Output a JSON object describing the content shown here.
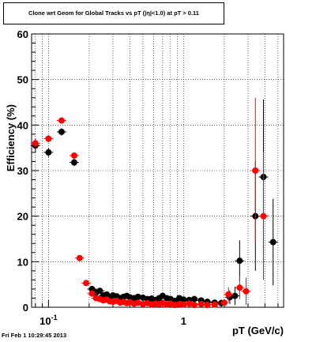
{
  "title": "Clone wrt Geom for Global Tracks vs pT (|η|<1.0) at pT > 0.11",
  "footer": "Fri Feb  1 10:29:45 2013",
  "chart_data": {
    "type": "scatter",
    "title": "Clone wrt Geom for Global Tracks vs pT (|η|<1.0) at pT > 0.11",
    "xlabel": "pT (GeV/c)",
    "ylabel": "Efficiency (%)",
    "xscale": "log",
    "xlim": [
      0.075,
      5.5
    ],
    "ylim": [
      0,
      60
    ],
    "yticks": [
      0,
      10,
      20,
      30,
      40,
      50,
      60
    ],
    "xtick_labels": [
      {
        "value": 0.1,
        "label": "10",
        "sup": "-1"
      },
      {
        "value": 1,
        "label": "1",
        "sup": ""
      }
    ],
    "grid": true,
    "series": [
      {
        "color": "#000000",
        "points": [
          {
            "x": 0.08,
            "y": 35.5,
            "ey": 1.5
          },
          {
            "x": 0.1,
            "y": 34.0,
            "ey": 1.0
          },
          {
            "x": 0.125,
            "y": 38.5,
            "ey": 0.8
          },
          {
            "x": 0.155,
            "y": 31.8,
            "ey": 0.8
          },
          {
            "x": 0.21,
            "y": 4.0,
            "ey": 0.5
          },
          {
            "x": 0.225,
            "y": 3.2,
            "ey": 0.5
          },
          {
            "x": 0.24,
            "y": 3.6,
            "ey": 0.5
          },
          {
            "x": 0.255,
            "y": 2.6,
            "ey": 0.4
          },
          {
            "x": 0.27,
            "y": 2.8,
            "ey": 0.4
          },
          {
            "x": 0.285,
            "y": 2.2,
            "ey": 0.4
          },
          {
            "x": 0.3,
            "y": 2.6,
            "ey": 0.4
          },
          {
            "x": 0.32,
            "y": 2.4,
            "ey": 0.4
          },
          {
            "x": 0.34,
            "y": 2.0,
            "ey": 0.4
          },
          {
            "x": 0.36,
            "y": 2.3,
            "ey": 0.4
          },
          {
            "x": 0.38,
            "y": 2.5,
            "ey": 0.4
          },
          {
            "x": 0.4,
            "y": 2.2,
            "ey": 0.4
          },
          {
            "x": 0.43,
            "y": 2.0,
            "ey": 0.4
          },
          {
            "x": 0.46,
            "y": 2.3,
            "ey": 0.4
          },
          {
            "x": 0.5,
            "y": 2.1,
            "ey": 0.4
          },
          {
            "x": 0.54,
            "y": 1.8,
            "ey": 0.4
          },
          {
            "x": 0.58,
            "y": 1.9,
            "ey": 0.4
          },
          {
            "x": 0.62,
            "y": 1.6,
            "ey": 0.4
          },
          {
            "x": 0.66,
            "y": 2.0,
            "ey": 0.4
          },
          {
            "x": 0.7,
            "y": 2.5,
            "ey": 0.4
          },
          {
            "x": 0.75,
            "y": 2.0,
            "ey": 0.4
          },
          {
            "x": 0.8,
            "y": 1.8,
            "ey": 0.4
          },
          {
            "x": 0.86,
            "y": 1.4,
            "ey": 0.4
          },
          {
            "x": 0.93,
            "y": 2.0,
            "ey": 0.4
          },
          {
            "x": 1.0,
            "y": 1.7,
            "ey": 0.4
          },
          {
            "x": 1.1,
            "y": 1.6,
            "ey": 0.5
          },
          {
            "x": 1.2,
            "y": 1.8,
            "ey": 0.5
          },
          {
            "x": 1.35,
            "y": 1.5,
            "ey": 0.6
          },
          {
            "x": 1.5,
            "y": 1.2,
            "ey": 0.6
          },
          {
            "x": 1.7,
            "y": 1.0,
            "ey": 0.7
          },
          {
            "x": 1.9,
            "y": 0.9,
            "ey": 0.8
          },
          {
            "x": 2.2,
            "y": 2.2,
            "ey": 1.5
          },
          {
            "x": 2.4,
            "y": 2.5,
            "ey": 2.0
          },
          {
            "x": 2.6,
            "y": 10.2,
            "ey": 4.5
          },
          {
            "x": 3.4,
            "y": 20.0,
            "ey": 12.0
          },
          {
            "x": 3.9,
            "y": 28.6,
            "ey": 17.0
          },
          {
            "x": 4.6,
            "y": 14.3,
            "ey": 9.5
          }
        ]
      },
      {
        "color": "#ff0000",
        "points": [
          {
            "x": 0.08,
            "y": 36.0,
            "ey": 1.0
          },
          {
            "x": 0.1,
            "y": 37.0,
            "ey": 0.8
          },
          {
            "x": 0.125,
            "y": 41.0,
            "ey": 0.6
          },
          {
            "x": 0.155,
            "y": 33.3,
            "ey": 0.6
          },
          {
            "x": 0.17,
            "y": 10.8,
            "ey": 0.5
          },
          {
            "x": 0.19,
            "y": 5.3,
            "ey": 0.4
          },
          {
            "x": 0.21,
            "y": 3.0,
            "ey": 0.4
          },
          {
            "x": 0.225,
            "y": 2.0,
            "ey": 0.3
          },
          {
            "x": 0.24,
            "y": 1.8,
            "ey": 0.3
          },
          {
            "x": 0.255,
            "y": 1.5,
            "ey": 0.3
          },
          {
            "x": 0.27,
            "y": 1.7,
            "ey": 0.3
          },
          {
            "x": 0.285,
            "y": 1.3,
            "ey": 0.3
          },
          {
            "x": 0.3,
            "y": 1.2,
            "ey": 0.3
          },
          {
            "x": 0.32,
            "y": 1.4,
            "ey": 0.3
          },
          {
            "x": 0.34,
            "y": 1.0,
            "ey": 0.3
          },
          {
            "x": 0.36,
            "y": 1.2,
            "ey": 0.3
          },
          {
            "x": 0.38,
            "y": 0.9,
            "ey": 0.3
          },
          {
            "x": 0.4,
            "y": 1.1,
            "ey": 0.3
          },
          {
            "x": 0.43,
            "y": 0.8,
            "ey": 0.3
          },
          {
            "x": 0.46,
            "y": 1.0,
            "ey": 0.3
          },
          {
            "x": 0.5,
            "y": 0.7,
            "ey": 0.3
          },
          {
            "x": 0.54,
            "y": 0.9,
            "ey": 0.3
          },
          {
            "x": 0.58,
            "y": 0.6,
            "ey": 0.3
          },
          {
            "x": 0.62,
            "y": 0.8,
            "ey": 0.3
          },
          {
            "x": 0.66,
            "y": 0.7,
            "ey": 0.3
          },
          {
            "x": 0.7,
            "y": 0.9,
            "ey": 0.3
          },
          {
            "x": 0.75,
            "y": 0.6,
            "ey": 0.3
          },
          {
            "x": 0.8,
            "y": 0.8,
            "ey": 0.3
          },
          {
            "x": 0.86,
            "y": 0.5,
            "ey": 0.3
          },
          {
            "x": 0.93,
            "y": 0.7,
            "ey": 0.3
          },
          {
            "x": 1.0,
            "y": 0.6,
            "ey": 0.3
          },
          {
            "x": 1.1,
            "y": 0.8,
            "ey": 0.3
          },
          {
            "x": 1.2,
            "y": 0.5,
            "ey": 0.3
          },
          {
            "x": 1.35,
            "y": 0.7,
            "ey": 0.4
          },
          {
            "x": 1.5,
            "y": 0.5,
            "ey": 0.4
          },
          {
            "x": 1.7,
            "y": 0.6,
            "ey": 0.5
          },
          {
            "x": 2.0,
            "y": 1.0,
            "ey": 0.8
          },
          {
            "x": 2.15,
            "y": 2.8,
            "ey": 1.6
          },
          {
            "x": 2.6,
            "y": 4.3,
            "ey": 2.5
          },
          {
            "x": 2.9,
            "y": 3.5,
            "ey": 3.0
          },
          {
            "x": 3.4,
            "y": 30.0,
            "ey": 16.0
          },
          {
            "x": 3.9,
            "y": 20.0,
            "ey": 14.0
          }
        ]
      }
    ]
  }
}
